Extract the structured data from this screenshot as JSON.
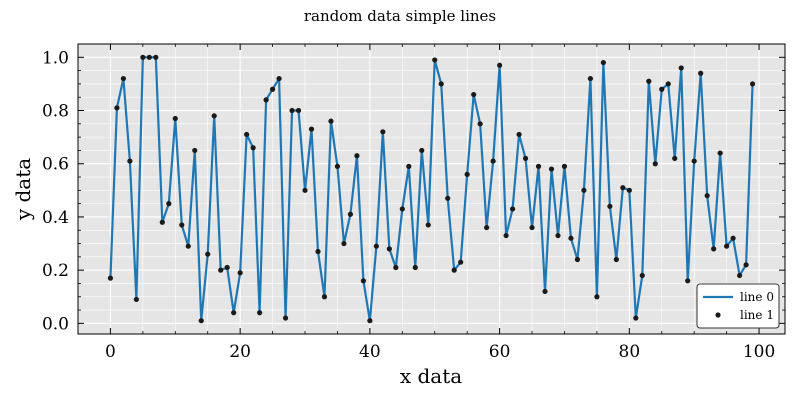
{
  "chart_data": {
    "type": "line",
    "title": "random data simple lines",
    "xlabel": "x data",
    "ylabel": "y data",
    "xlim": [
      -5,
      104
    ],
    "ylim": [
      -0.04,
      1.05
    ],
    "x_ticks": [
      0,
      20,
      40,
      60,
      80,
      100
    ],
    "y_ticks": [
      0.0,
      0.2,
      0.4,
      0.6,
      0.8,
      1.0
    ],
    "x_tick_labels": [
      "0",
      "20",
      "40",
      "60",
      "80",
      "100"
    ],
    "y_tick_labels": [
      "0.0",
      "0.2",
      "0.4",
      "0.6",
      "0.8",
      "1.0"
    ],
    "grid": true,
    "legend_position": "bottom-right",
    "colors": {
      "line": "#1f77b4",
      "points": "#1a1a1a",
      "plot_background": "#e5e5e5",
      "grid": "#ffffff"
    },
    "x": [
      0,
      1,
      2,
      3,
      4,
      5,
      6,
      7,
      8,
      9,
      10,
      11,
      12,
      13,
      14,
      15,
      16,
      17,
      18,
      19,
      20,
      21,
      22,
      23,
      24,
      25,
      26,
      27,
      28,
      29,
      30,
      31,
      32,
      33,
      34,
      35,
      36,
      37,
      38,
      39,
      40,
      41,
      42,
      43,
      44,
      45,
      46,
      47,
      48,
      49,
      50,
      51,
      52,
      53,
      54,
      55,
      56,
      57,
      58,
      59,
      60,
      61,
      62,
      63,
      64,
      65,
      66,
      67,
      68,
      69,
      70,
      71,
      72,
      73,
      74,
      75,
      76,
      77,
      78,
      79,
      80,
      81,
      82,
      83,
      84,
      85,
      86,
      87,
      88,
      89,
      90,
      91,
      92,
      93,
      94,
      95,
      96,
      97,
      98,
      99
    ],
    "series": [
      {
        "name": "line 0",
        "kind": "line",
        "values": [
          0.17,
          0.81,
          0.92,
          0.61,
          0.09,
          1.0,
          1.0,
          1.0,
          0.38,
          0.45,
          0.77,
          0.37,
          0.29,
          0.65,
          0.01,
          0.26,
          0.78,
          0.2,
          0.21,
          0.04,
          0.19,
          0.71,
          0.66,
          0.04,
          0.84,
          0.88,
          0.92,
          0.02,
          0.8,
          0.8,
          0.5,
          0.73,
          0.27,
          0.1,
          0.76,
          0.59,
          0.3,
          0.41,
          0.63,
          0.16,
          0.01,
          0.29,
          0.72,
          0.28,
          0.21,
          0.43,
          0.59,
          0.21,
          0.65,
          0.37,
          0.99,
          0.9,
          0.47,
          0.2,
          0.23,
          0.56,
          0.86,
          0.75,
          0.36,
          0.61,
          0.97,
          0.33,
          0.43,
          0.71,
          0.62,
          0.36,
          0.59,
          0.12,
          0.58,
          0.33,
          0.59,
          0.32,
          0.24,
          0.5,
          0.92,
          0.1,
          0.98,
          0.44,
          0.24,
          0.51,
          0.5,
          0.02,
          0.18,
          0.91,
          0.6,
          0.88,
          0.9,
          0.62,
          0.96,
          0.16,
          0.61,
          0.94,
          0.48,
          0.28,
          0.64,
          0.29,
          0.32,
          0.18,
          0.22,
          0.9
        ]
      },
      {
        "name": "line 1",
        "kind": "scatter",
        "values": [
          0.17,
          0.81,
          0.92,
          0.61,
          0.09,
          1.0,
          1.0,
          1.0,
          0.38,
          0.45,
          0.77,
          0.37,
          0.29,
          0.65,
          0.01,
          0.26,
          0.78,
          0.2,
          0.21,
          0.04,
          0.19,
          0.71,
          0.66,
          0.04,
          0.84,
          0.88,
          0.92,
          0.02,
          0.8,
          0.8,
          0.5,
          0.73,
          0.27,
          0.1,
          0.76,
          0.59,
          0.3,
          0.41,
          0.63,
          0.16,
          0.01,
          0.29,
          0.72,
          0.28,
          0.21,
          0.43,
          0.59,
          0.21,
          0.65,
          0.37,
          0.99,
          0.9,
          0.47,
          0.2,
          0.23,
          0.56,
          0.86,
          0.75,
          0.36,
          0.61,
          0.97,
          0.33,
          0.43,
          0.71,
          0.62,
          0.36,
          0.59,
          0.12,
          0.58,
          0.33,
          0.59,
          0.32,
          0.24,
          0.5,
          0.92,
          0.1,
          0.98,
          0.44,
          0.24,
          0.51,
          0.5,
          0.02,
          0.18,
          0.91,
          0.6,
          0.88,
          0.9,
          0.62,
          0.96,
          0.16,
          0.61,
          0.94,
          0.48,
          0.28,
          0.64,
          0.29,
          0.32,
          0.18,
          0.22,
          0.9
        ]
      }
    ]
  }
}
